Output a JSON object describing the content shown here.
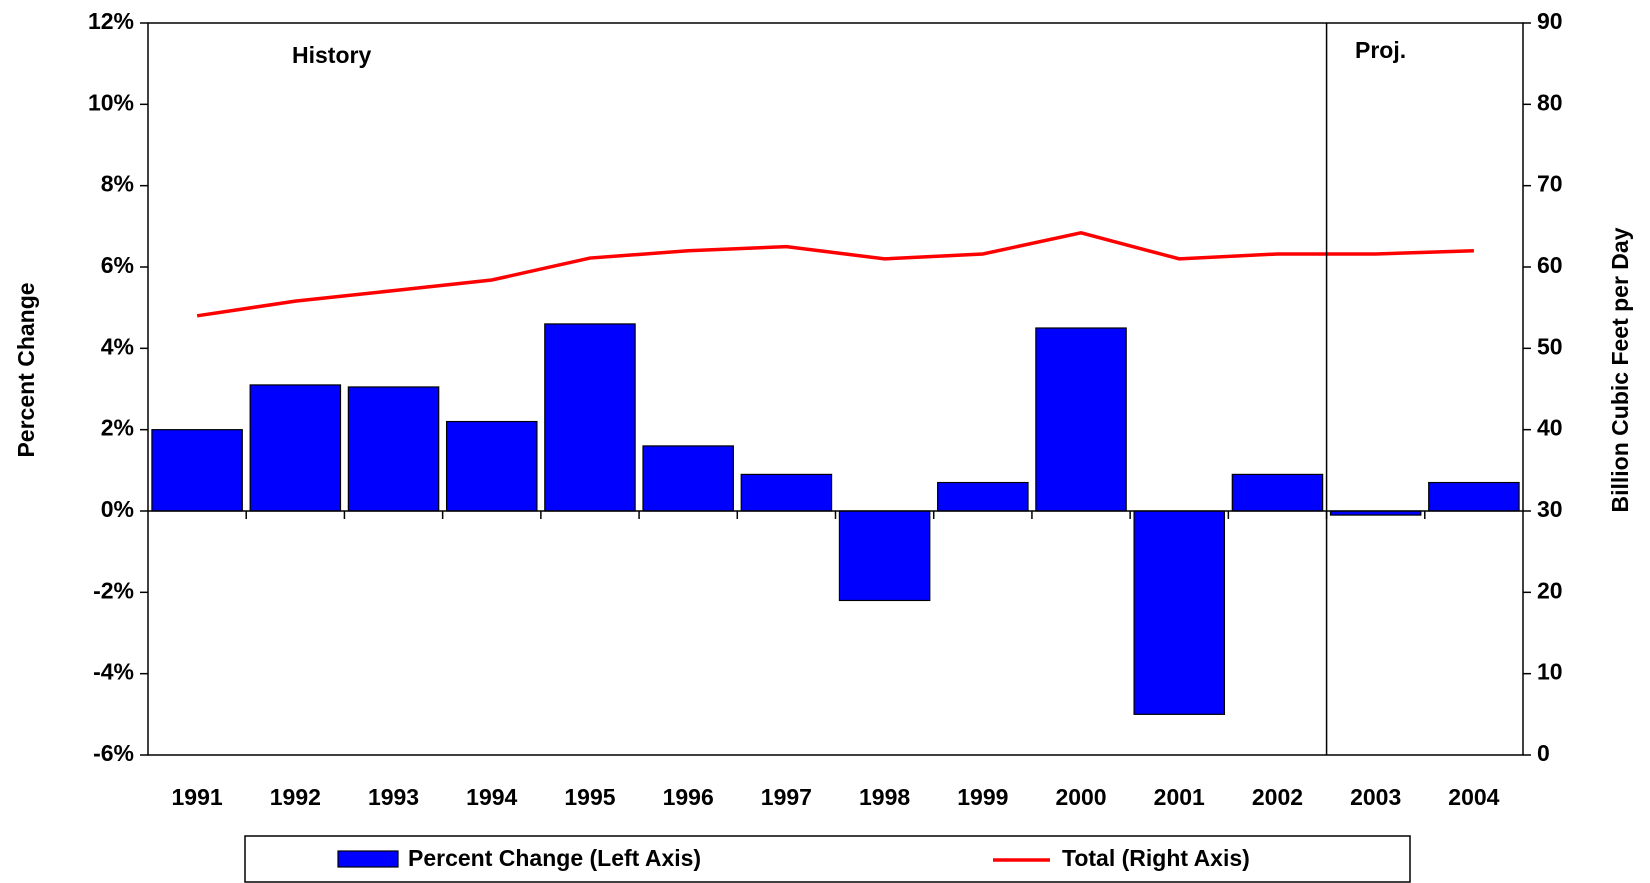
{
  "chart_data": {
    "type": "bar",
    "categories": [
      "1991",
      "1992",
      "1993",
      "1994",
      "1995",
      "1996",
      "1997",
      "1998",
      "1999",
      "2000",
      "2001",
      "2002",
      "2003",
      "2004"
    ],
    "series": [
      {
        "name": "Percent Change (Left Axis)",
        "type": "bar",
        "axis": "y",
        "color": "#0000ff",
        "values": [
          2.0,
          3.1,
          3.05,
          2.2,
          4.6,
          1.6,
          0.9,
          -2.2,
          0.7,
          4.5,
          -5.0,
          0.9,
          -0.1,
          0.7
        ]
      },
      {
        "name": "Total (Right Axis)",
        "type": "line",
        "axis": "y2",
        "color": "#ff0000",
        "values": [
          54,
          55.8,
          57.1,
          58.4,
          61.1,
          62.0,
          62.5,
          61.0,
          61.6,
          64.2,
          61.0,
          61.6,
          61.6,
          62.0
        ]
      }
    ],
    "ylabel": "Percent Change",
    "y2label": "Billion Cubic Feet per Day",
    "ylim": [
      -6,
      12
    ],
    "yticks": [
      {
        "value": -6,
        "label": "-6%"
      },
      {
        "value": -4,
        "label": "-4%"
      },
      {
        "value": -2,
        "label": "-2%"
      },
      {
        "value": 0,
        "label": "0%"
      },
      {
        "value": 2,
        "label": "2%"
      },
      {
        "value": 4,
        "label": "4%"
      },
      {
        "value": 6,
        "label": "6%"
      },
      {
        "value": 8,
        "label": "8%"
      },
      {
        "value": 10,
        "label": "10%"
      },
      {
        "value": 12,
        "label": "12%"
      }
    ],
    "y2lim": [
      0,
      90
    ],
    "y2ticks": [
      0,
      10,
      20,
      30,
      40,
      50,
      60,
      70,
      80,
      90
    ],
    "annotations": [
      "History",
      "Proj."
    ],
    "grid": false
  }
}
